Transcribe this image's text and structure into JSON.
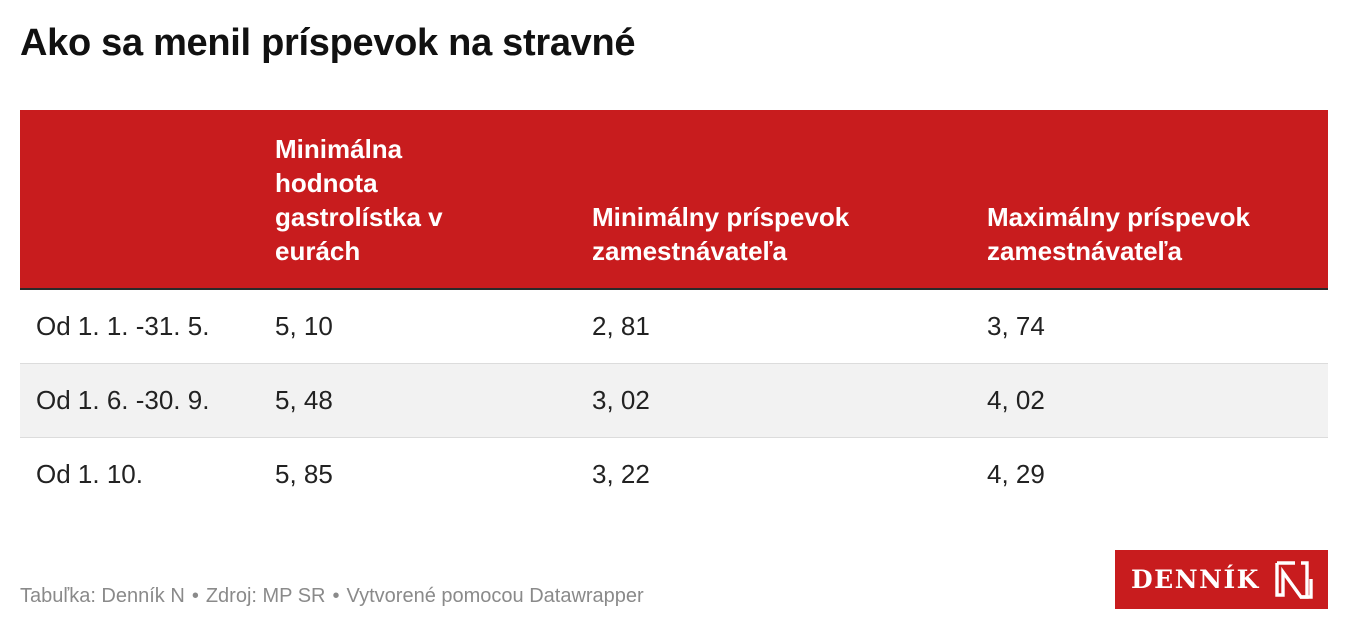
{
  "title": "Ako sa menil príspevok na stravné",
  "chart_data": {
    "type": "table",
    "columns": [
      "",
      "Minimálna hodnota gastrolístka v eurách",
      "Minimálny príspevok zamestnávateľa",
      "Maximálny príspevok zamestnávateľa"
    ],
    "rows": [
      [
        "Od 1. 1. -31. 5.",
        "5, 10",
        "2, 81",
        "3, 74"
      ],
      [
        "Od 1. 6. -30. 9.",
        "5, 48",
        "3, 02",
        "4, 02"
      ],
      [
        "Od 1. 10.",
        "5, 85",
        "3, 22",
        "4, 29"
      ]
    ],
    "header_color": "#c81c1e"
  },
  "footer": {
    "part1": "Tabuľka: Denník N",
    "part2": "Zdroj: MP SR",
    "part3": "Vytvorené pomocou Datawrapper",
    "separator": "•"
  },
  "logo": {
    "text": "DENNÍK",
    "letter": "N",
    "color": "#c81c1e"
  }
}
